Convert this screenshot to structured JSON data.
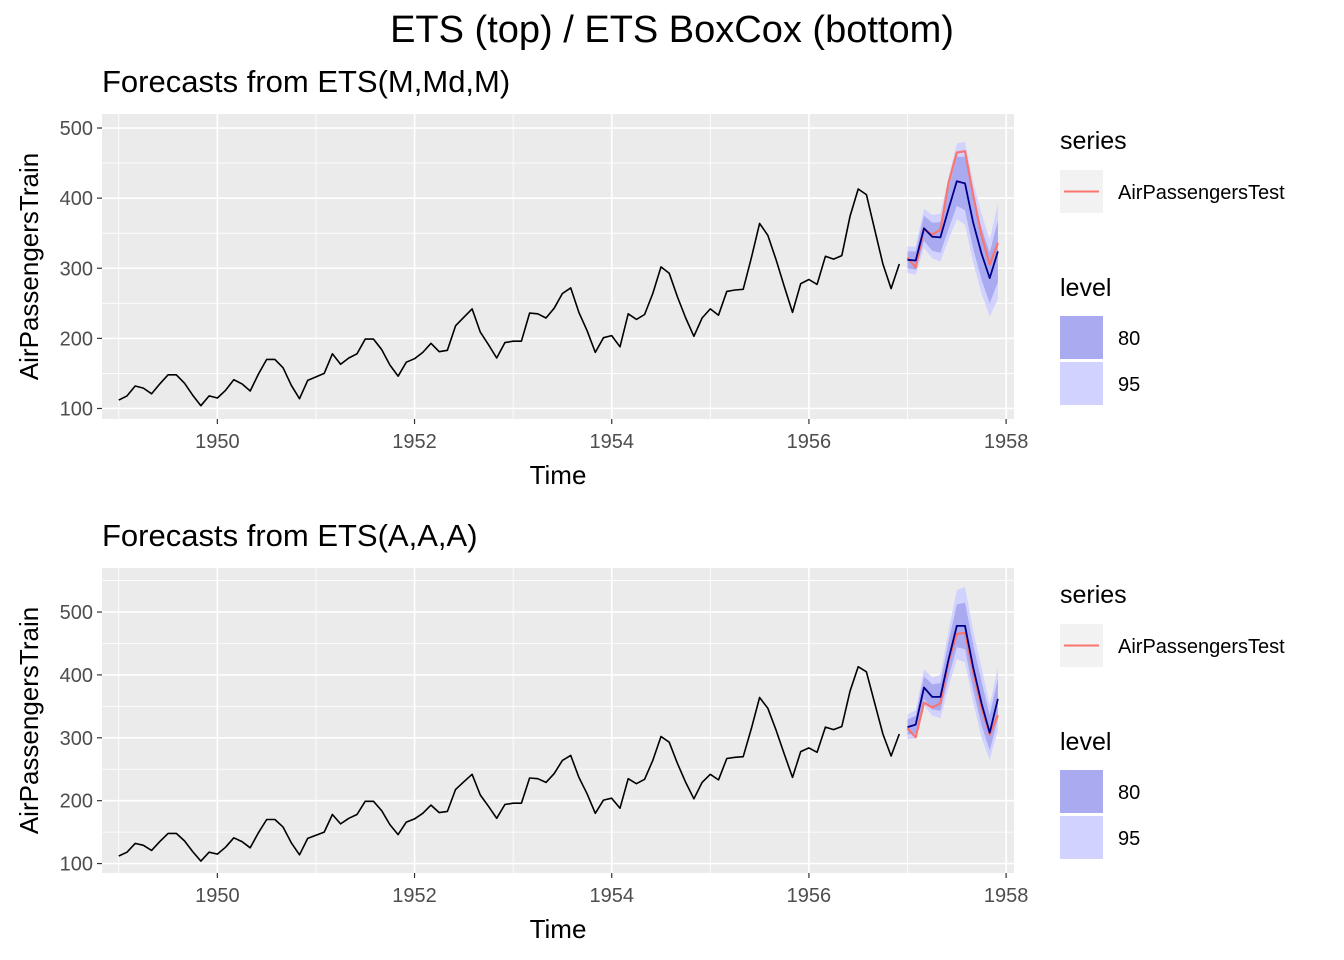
{
  "main_title": "ETS (top) / ETS BoxCox (bottom)",
  "colors": {
    "panel_bg": "#ebebeb",
    "grid": "#ffffff",
    "history_line": "#000000",
    "forecast_line": "#00008b",
    "test_line": "#f8766d",
    "band_80": "#aaaaf0",
    "band_95": "#d2d2ff"
  },
  "legend": {
    "series_title": "series",
    "series_entries": [
      "AirPassengersTest"
    ],
    "level_title": "level",
    "level_entries": [
      "80",
      "95"
    ]
  },
  "chart_data": [
    {
      "type": "line",
      "title": "Forecasts from ETS(M,Md,M)",
      "xlabel": "Time",
      "ylabel": "AirPassengersTrain",
      "xlim": [
        1948.83,
        1958.08
      ],
      "ylim": [
        85,
        520
      ],
      "xticks": [
        1950,
        1952,
        1954,
        1956,
        1958
      ],
      "xtick_labels": [
        "1950",
        "1952",
        "1954",
        "1956",
        "1958"
      ],
      "yticks": [
        100,
        200,
        300,
        400,
        500
      ],
      "ytick_labels": [
        "100",
        "200",
        "300",
        "400",
        "500"
      ],
      "grid": true,
      "history": {
        "name": "AirPassengersTrain",
        "start": 1949,
        "frequency": 12,
        "values": [
          112,
          118,
          132,
          129,
          121,
          135,
          148,
          148,
          136,
          119,
          104,
          118,
          115,
          126,
          141,
          135,
          125,
          149,
          170,
          170,
          158,
          133,
          114,
          140,
          145,
          150,
          178,
          163,
          172,
          178,
          199,
          199,
          184,
          162,
          146,
          166,
          171,
          180,
          193,
          181,
          183,
          218,
          230,
          242,
          209,
          191,
          172,
          194,
          196,
          196,
          236,
          235,
          229,
          243,
          264,
          272,
          237,
          211,
          180,
          201,
          204,
          188,
          235,
          227,
          234,
          264,
          302,
          293,
          259,
          229,
          203,
          229,
          242,
          233,
          267,
          269,
          270,
          315,
          364,
          347,
          312,
          274,
          237,
          278,
          284,
          277,
          317,
          313,
          318,
          374,
          413,
          405,
          355,
          306,
          271,
          306
        ]
      },
      "test": {
        "name": "AirPassengersTest",
        "start": 1957,
        "frequency": 12,
        "values": [
          315,
          301,
          356,
          348,
          355,
          422,
          465,
          467,
          404,
          347,
          305,
          336
        ]
      },
      "forecast": {
        "start": 1957,
        "frequency": 12,
        "mean": [
          312,
          311,
          357,
          345,
          344,
          385,
          424,
          421,
          365,
          321,
          286,
          324
        ],
        "lo80": [
          300,
          298,
          339,
          325,
          322,
          356,
          389,
          383,
          328,
          284,
          250,
          280
        ],
        "hi80": [
          324,
          324,
          375,
          365,
          366,
          414,
          459,
          459,
          402,
          358,
          322,
          368
        ],
        "lo95": [
          293,
          291,
          329,
          314,
          310,
          341,
          370,
          362,
          308,
          264,
          231,
          256
        ],
        "hi95": [
          331,
          331,
          385,
          376,
          378,
          430,
          478,
          480,
          422,
          378,
          341,
          392
        ]
      }
    },
    {
      "type": "line",
      "title": "Forecasts from ETS(A,A,A)",
      "xlabel": "Time",
      "ylabel": "AirPassengersTrain",
      "xlim": [
        1948.83,
        1958.08
      ],
      "ylim": [
        85,
        570
      ],
      "xticks": [
        1950,
        1952,
        1954,
        1956,
        1958
      ],
      "xtick_labels": [
        "1950",
        "1952",
        "1954",
        "1956",
        "1958"
      ],
      "yticks": [
        100,
        200,
        300,
        400,
        500
      ],
      "ytick_labels": [
        "100",
        "200",
        "300",
        "400",
        "500"
      ],
      "grid": true,
      "history": {
        "name": "AirPassengersTrain",
        "start": 1949,
        "frequency": 12,
        "values": [
          112,
          118,
          132,
          129,
          121,
          135,
          148,
          148,
          136,
          119,
          104,
          118,
          115,
          126,
          141,
          135,
          125,
          149,
          170,
          170,
          158,
          133,
          114,
          140,
          145,
          150,
          178,
          163,
          172,
          178,
          199,
          199,
          184,
          162,
          146,
          166,
          171,
          180,
          193,
          181,
          183,
          218,
          230,
          242,
          209,
          191,
          172,
          194,
          196,
          196,
          236,
          235,
          229,
          243,
          264,
          272,
          237,
          211,
          180,
          201,
          204,
          188,
          235,
          227,
          234,
          264,
          302,
          293,
          259,
          229,
          203,
          229,
          242,
          233,
          267,
          269,
          270,
          315,
          364,
          347,
          312,
          274,
          237,
          278,
          284,
          277,
          317,
          313,
          318,
          374,
          413,
          405,
          355,
          306,
          271,
          306
        ]
      },
      "test": {
        "name": "AirPassengersTest",
        "start": 1957,
        "frequency": 12,
        "values": [
          315,
          301,
          356,
          348,
          355,
          422,
          465,
          467,
          404,
          347,
          305,
          336
        ]
      },
      "forecast": {
        "start": 1957,
        "frequency": 12,
        "mean": [
          317,
          321,
          380,
          365,
          365,
          425,
          478,
          478,
          412,
          355,
          308,
          362
        ],
        "lo80": [
          305,
          307,
          362,
          345,
          343,
          397,
          444,
          441,
          376,
          320,
          280,
          330
        ],
        "hi80": [
          329,
          335,
          398,
          385,
          387,
          453,
          512,
          515,
          448,
          390,
          336,
          394
        ],
        "lo95": [
          298,
          299,
          352,
          335,
          331,
          381,
          425,
          420,
          356,
          300,
          265,
          312
        ],
        "hi95": [
          337,
          344,
          409,
          396,
          400,
          471,
          535,
          540,
          470,
          412,
          352,
          412
        ]
      }
    }
  ]
}
